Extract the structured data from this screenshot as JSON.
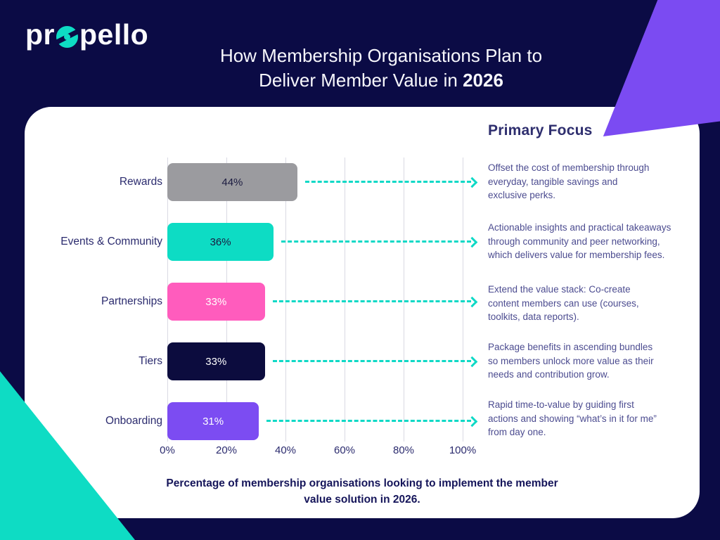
{
  "logo": {
    "prefix": "pr",
    "suffix": "pello"
  },
  "title": {
    "line1": "How Membership Organisations Plan to",
    "line2_prefix": "Deliver Member Value in",
    "year": "2026"
  },
  "chart_data": {
    "type": "bar",
    "orientation": "horizontal",
    "title": "How Membership Organisations Plan to Deliver Member Value in 2026",
    "categories": [
      "Rewards",
      "Events & Community",
      "Partnerships",
      "Tiers",
      "Onboarding"
    ],
    "values": [
      44,
      36,
      33,
      33,
      31
    ],
    "value_labels": [
      "44%",
      "36%",
      "33%",
      "33%",
      "31%"
    ],
    "bar_colors": [
      "#9b9b9f",
      "#0ddcc4",
      "#ff5cbd",
      "#0c0c3e",
      "#7c4cf2"
    ],
    "value_label_colors": [
      "#1b1b40",
      "#1b1b40",
      "#ffffff",
      "#ffffff",
      "#ffffff"
    ],
    "x_ticks": [
      "0%",
      "20%",
      "40%",
      "60%",
      "80%",
      "100%"
    ],
    "tick_values": [
      0,
      20,
      40,
      60,
      80,
      100
    ],
    "xlim": [
      0,
      100
    ],
    "grid": true,
    "xlabel": "",
    "ylabel": "",
    "legend": false
  },
  "right_panel": {
    "heading": "Primary Focus",
    "notes": [
      "Offset the cost of membership through\neveryday, tangible savings and\nexclusive perks.",
      "Actionable insights and practical takeaways\nthrough community and peer networking,\nwhich delivers value for membership fees.",
      "Extend the value stack: Co-create\ncontent members can use (courses,\ntoolkits, data reports).",
      "Package benefits in ascending bundles\nso members unlock more value as their\nneeds and contribution grow.",
      "Rapid time-to-value by guiding first\nactions and showing “what’s in it for me”\nfrom day one."
    ]
  },
  "caption": "Percentage of membership organisations looking to implement the member\nvalue solution in 2026.",
  "colors": {
    "background": "#0b0b45",
    "card": "#ffffff",
    "accent_teal": "#0edcc4",
    "accent_purple": "#7b4bf2",
    "arrow": "#0fd9c6",
    "gridline": "#d9d9e3",
    "label_text": "#2b2b6e",
    "note_text": "#4c4c90",
    "caption_text": "#15155a"
  }
}
